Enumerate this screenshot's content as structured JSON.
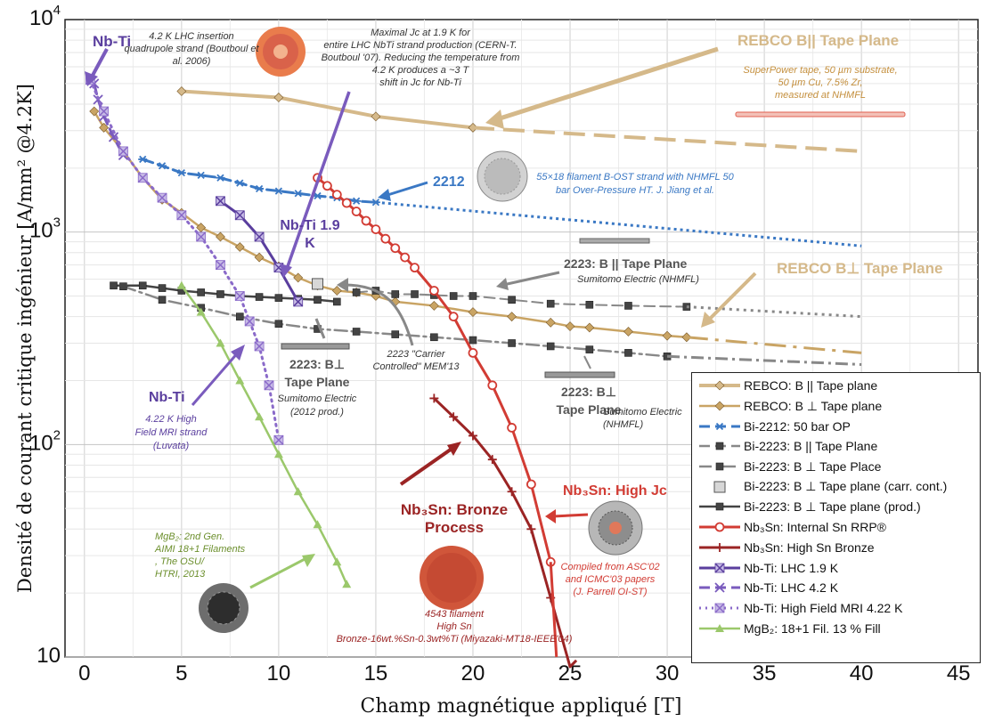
{
  "chart_data": {
    "type": "line",
    "xscale": "linear",
    "yscale": "log",
    "xlim": [
      -1,
      46
    ],
    "ylim": [
      10,
      10000
    ],
    "xticks": [
      "0",
      "5",
      "10",
      "15",
      "20",
      "25",
      "30",
      "35",
      "40",
      "45"
    ],
    "yticks": [
      {
        "base": "10",
        "exp": "4"
      },
      {
        "base": "10",
        "exp": "3"
      },
      {
        "base": "10",
        "exp": "2"
      },
      {
        "base": "10",
        "exp": ""
      }
    ],
    "xlabel": "Champ magnétique appliqué [T]",
    "ylabel": "Densité de courant critique ingénieur [A/mm² @4.2K]",
    "series": [
      {
        "name": "REBCO: B || Tape plane",
        "color": "#d5b98a",
        "marker": "diamond",
        "dash": "solid",
        "width": 4,
        "x": [
          5,
          10,
          15,
          20
        ],
        "y": [
          4600,
          4300,
          3500,
          3100
        ]
      },
      {
        "name": "REBCO: B ⊥ Tape plane",
        "color": "#c9a464",
        "marker": "diamond",
        "dash": "solid",
        "width": 2.5,
        "x": [
          0.5,
          1,
          2,
          3,
          4,
          5,
          6,
          7,
          8,
          9,
          10,
          11,
          12,
          13,
          14,
          15,
          16,
          18,
          20,
          22,
          24,
          25,
          26,
          28,
          30,
          31
        ],
        "y": [
          3700,
          3100,
          2400,
          1800,
          1420,
          1230,
          1050,
          950,
          850,
          760,
          690,
          610,
          560,
          530,
          520,
          500,
          470,
          450,
          420,
          400,
          375,
          360,
          355,
          340,
          325,
          320
        ]
      },
      {
        "name": "Bi-2212: 50 bar OP",
        "color": "#3a78c4",
        "marker": "asterisk",
        "dash": "dashed",
        "width": 3,
        "x": [
          3,
          4,
          5,
          6,
          7,
          8,
          9,
          10,
          11,
          12,
          13,
          14,
          15
        ],
        "y": [
          2200,
          2050,
          1900,
          1850,
          1800,
          1700,
          1600,
          1560,
          1520,
          1480,
          1450,
          1400,
          1380
        ]
      },
      {
        "name": "Bi-2223: B || Tape Plane",
        "color": "#888888",
        "marker": "square",
        "dash": "dashed",
        "width": 2,
        "x": [
          14,
          15,
          16,
          17,
          18,
          19,
          20,
          22,
          24,
          26,
          28,
          31
        ],
        "y": [
          520,
          530,
          510,
          510,
          505,
          500,
          500,
          480,
          460,
          455,
          450,
          445
        ]
      },
      {
        "name": "Bi-2223: B ⊥ Tape Place",
        "color": "#888888",
        "marker": "square",
        "dash": "dashdot",
        "width": 2.5,
        "x": [
          2,
          4,
          6,
          8,
          10,
          12,
          14,
          16,
          18,
          20,
          22,
          24,
          26,
          28,
          30
        ],
        "y": [
          555,
          480,
          440,
          400,
          370,
          350,
          340,
          330,
          320,
          310,
          300,
          290,
          280,
          270,
          260
        ]
      },
      {
        "name": "Bi-2223: B ⊥ Tape plane (carr. cont.)",
        "color": "#888888",
        "marker": "square-open",
        "dash": "none",
        "width": 0,
        "x": [
          12
        ],
        "y": [
          570
        ]
      },
      {
        "name": "Bi-2223: B ⊥ Tape plane (prod.)",
        "color": "#444444",
        "marker": "square",
        "dash": "solid",
        "width": 2.5,
        "x": [
          1.5,
          3,
          4,
          5,
          6,
          7,
          8,
          9,
          10,
          11,
          12,
          13
        ],
        "y": [
          560,
          560,
          545,
          530,
          520,
          510,
          500,
          495,
          490,
          485,
          480,
          470
        ]
      },
      {
        "name": "Nb₃Sn: Internal Sn RRP®",
        "color": "#d23c34",
        "marker": "circle",
        "dash": "solid",
        "width": 3,
        "x": [
          12,
          12.5,
          13,
          13.5,
          14,
          14.5,
          15,
          15.5,
          16,
          16.5,
          17,
          18,
          19,
          20,
          21,
          22,
          23,
          24
        ],
        "y": [
          1800,
          1650,
          1500,
          1370,
          1250,
          1130,
          1030,
          930,
          840,
          760,
          680,
          530,
          400,
          270,
          190,
          120,
          65,
          28
        ]
      },
      {
        "name": "Nb₃Sn: High Sn Bronze",
        "color": "#9b2424",
        "marker": "plus",
        "dash": "solid",
        "width": 3,
        "x": [
          18,
          19,
          20,
          21,
          22,
          23,
          24,
          25
        ],
        "y": [
          165,
          135,
          110,
          85,
          60,
          40,
          19,
          9
        ]
      },
      {
        "name": "Nb-Ti: LHC 1.9 K",
        "color": "#5a3e9e",
        "marker": "xbox",
        "dash": "solid",
        "width": 3,
        "x": [
          7,
          8,
          9,
          10,
          11
        ],
        "y": [
          1400,
          1200,
          950,
          680,
          470
        ]
      },
      {
        "name": "Nb-Ti: LHC 4.2 K",
        "color": "#7a5bbd",
        "marker": "x",
        "dash": "dashed",
        "width": 3,
        "x": [
          0.5,
          0.7,
          1,
          1.5,
          2
        ],
        "y": [
          5000,
          4200,
          3500,
          2800,
          2300
        ]
      },
      {
        "name": "Nb-Ti: High Field MRI 4.22 K",
        "color": "#8a6ac9",
        "marker": "xbox",
        "dash": "dotted",
        "width": 3,
        "x": [
          0.3,
          1,
          2,
          3,
          4,
          5,
          6,
          7,
          8,
          8.5,
          9,
          9.5,
          10
        ],
        "y": [
          5200,
          3700,
          2400,
          1800,
          1450,
          1200,
          950,
          700,
          500,
          380,
          290,
          190,
          105
        ]
      },
      {
        "name": "MgB₂: 18+1 Fil. 13 % Fill",
        "color": "#9bc86b",
        "marker": "triangle",
        "dash": "solid",
        "width": 2.5,
        "x": [
          5,
          6,
          7,
          8,
          9,
          10,
          11,
          12,
          13,
          13.5
        ],
        "y": [
          560,
          420,
          300,
          200,
          135,
          90,
          60,
          42,
          28,
          22
        ]
      }
    ],
    "annotations": [
      {
        "text": "Nb-Ti",
        "style": "big"
      },
      {
        "text": "4.2 K LHC insertion quadrupole strand (Boutboul et al. 2006)"
      },
      {
        "text": "Maximal Jc at 1.9 K for entire LHC NbTi strand production (CERN-T. Boutboul '07). Reducing the temperature from 4.2 K produces a ~3 T shift in Jc for Nb-Ti"
      },
      {
        "text": "REBCO B|| Tape Plane",
        "style": "big"
      },
      {
        "text": "SuperPower tape, 50 µm substrate, 50 µm Cu, 7.5% Zr, measured at NHMFL"
      },
      {
        "text": "2212",
        "style": "big"
      },
      {
        "text": "55×18 filament B-OST strand with NHMFL 50 bar Over-Pressure HT. J. Jiang et al."
      },
      {
        "text": "Nb-Ti 1.9 K",
        "style": "big"
      },
      {
        "text": "2223: B || Tape Plane",
        "style": "big"
      },
      {
        "text": "Sumitomo Electric (NHMFL)"
      },
      {
        "text": "REBCO B⊥ Tape Plane",
        "style": "big"
      },
      {
        "text": "2223: B⊥ Tape Plane",
        "style": "big"
      },
      {
        "text": "Sumitomo Electric (2012 prod.)"
      },
      {
        "text": "2223 \"Carrier Controlled\" MEM'13"
      },
      {
        "text": "2223: B⊥ Tape Plane",
        "style": "big"
      },
      {
        "text": "Sumitomo Electric (NHMFL)"
      },
      {
        "text": "Nb-Ti",
        "style": "big"
      },
      {
        "text": "4.22 K High Field MRI strand (Luvata)"
      },
      {
        "text": "Nb₃Sn: High Jc",
        "style": "big"
      },
      {
        "text": "Nb₃Sn: Bronze Process",
        "style": "big"
      },
      {
        "text": "MgB₂: 2nd Gen. AIMI 18+1 Filaments , The OSU/ HTRI, 2013"
      },
      {
        "text": "4543 filament High Sn Bronze-16wt.%Sn-0.3wt%Ti (Miyazaki-MT18-IEEE'04)"
      },
      {
        "text": "Compiled from ASC'02 and ICMC'03 papers (J. Parrell OI-ST)"
      }
    ]
  }
}
